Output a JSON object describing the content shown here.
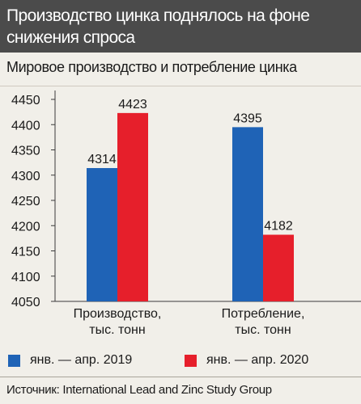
{
  "header": {
    "title_line1": "Производство цинка поднялось на фоне",
    "title_line2": "снижения спроса"
  },
  "subtitle": "Мировое производство и потребление цинка",
  "source": "Источник: International Lead and Zinc Study Group",
  "colors": {
    "series_2019": "#1f63b6",
    "series_2020": "#e61f2b",
    "header_bg": "#4b4b4b",
    "page_bg": "#f1efe9"
  },
  "chart_data": {
    "type": "bar",
    "categories": [
      "Производство,\nтыс. тонн",
      "Потребление,\nтыс. тонн"
    ],
    "series": [
      {
        "name": "янв. — апр. 2019",
        "values": [
          4314,
          4395
        ]
      },
      {
        "name": "янв. — апр. 2020",
        "values": [
          4423,
          4182
        ]
      }
    ],
    "y_ticks": [
      4050,
      4100,
      4150,
      4200,
      4250,
      4300,
      4350,
      4400,
      4450
    ],
    "ylim": [
      4050,
      4450
    ],
    "grid": false,
    "legend_position": "bottom"
  }
}
